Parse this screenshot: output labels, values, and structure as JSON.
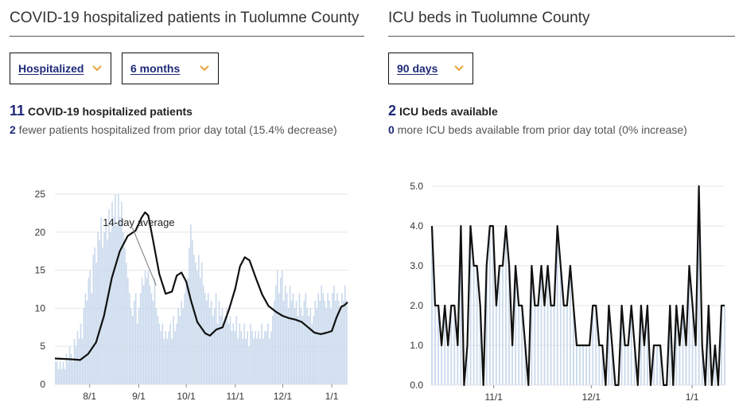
{
  "left": {
    "title": "COVID-19 hospitalized patients in Tuolumne County",
    "select1": "Hospitalized",
    "select2": "6 months",
    "headline_number": "11",
    "headline_text": "COVID-19 hospitalized patients",
    "sub_number": "2",
    "sub_text": " fewer patients hospitalized from prior day total (15.4% decrease)"
  },
  "right": {
    "title": "ICU beds in Tuolumne County",
    "select1": "90 days",
    "headline_number": "2",
    "headline_text": "ICU beds available",
    "sub_number": "0",
    "sub_text": " more ICU beds available from prior day total (0% increase)"
  },
  "colors": {
    "accent": "#1f2a78",
    "bar": "#c9d9ec",
    "line": "#111111",
    "chevron": "#e8a33a"
  },
  "chart_data": [
    {
      "type": "bar",
      "overlay": "line",
      "annotation": "14-day average",
      "ylim": [
        0,
        25
      ],
      "yticks": [
        0,
        5,
        10,
        15,
        20,
        25
      ],
      "xticks": [
        "8/1",
        "9/1",
        "10/1",
        "11/1",
        "12/1",
        "1/1"
      ],
      "x_start": "2021-07-10",
      "x_end": "2022-01-11",
      "bars": [
        3,
        3,
        2,
        3,
        2,
        3,
        2,
        4,
        3,
        5,
        4,
        3,
        6,
        5,
        7,
        6,
        8,
        6,
        10,
        12,
        11,
        14,
        15,
        12,
        17,
        18,
        16,
        20,
        19,
        22,
        18,
        20,
        21,
        19,
        23,
        20,
        24,
        22,
        25,
        21,
        25,
        22,
        24,
        20,
        18,
        16,
        14,
        12,
        10,
        9,
        11,
        12,
        8,
        10,
        12,
        14,
        13,
        15,
        14,
        15,
        13,
        12,
        11,
        14,
        10,
        9,
        8,
        7,
        8,
        6,
        7,
        6,
        7,
        8,
        6,
        9,
        7,
        8,
        10,
        9,
        11,
        10,
        12,
        13,
        14,
        18,
        21,
        19,
        17,
        16,
        15,
        17,
        14,
        16,
        13,
        12,
        11,
        12,
        10,
        11,
        9,
        10,
        12,
        8,
        11,
        9,
        10,
        8,
        9,
        10,
        8,
        9,
        7,
        8,
        7,
        9,
        6,
        8,
        7,
        6,
        8,
        6,
        7,
        5,
        8,
        7,
        6,
        7,
        6,
        7,
        6,
        8,
        6,
        7,
        7,
        8,
        6,
        7,
        9,
        11,
        13,
        15,
        12,
        14,
        15,
        11,
        13,
        12,
        10,
        13,
        11,
        12,
        10,
        11,
        9,
        12,
        10,
        9,
        11,
        12,
        10,
        9,
        10,
        8,
        9,
        11,
        10,
        12,
        11,
        13,
        12,
        11,
        10,
        12,
        11,
        10,
        12,
        13,
        11,
        12,
        11,
        10,
        12,
        11,
        13,
        11
      ],
      "average": [
        [
          "2021-07-10",
          3.4
        ],
        [
          "2021-07-20",
          3.3
        ],
        [
          "2021-07-26",
          3.2
        ],
        [
          "2021-07-31",
          4.0
        ],
        [
          "2021-08-05",
          5.5
        ],
        [
          "2021-08-10",
          9.0
        ],
        [
          "2021-08-15",
          14.0
        ],
        [
          "2021-08-20",
          17.5
        ],
        [
          "2021-08-25",
          19.5
        ],
        [
          "2021-08-30",
          20.2
        ],
        [
          "2021-09-03",
          22.0
        ],
        [
          "2021-09-05",
          22.6
        ],
        [
          "2021-09-07",
          22.2
        ],
        [
          "2021-09-10",
          19.0
        ],
        [
          "2021-09-14",
          14.5
        ],
        [
          "2021-09-18",
          11.9
        ],
        [
          "2021-09-22",
          12.2
        ],
        [
          "2021-09-25",
          14.3
        ],
        [
          "2021-09-28",
          14.7
        ],
        [
          "2021-10-01",
          13.5
        ],
        [
          "2021-10-04",
          11.0
        ],
        [
          "2021-10-08",
          8.2
        ],
        [
          "2021-10-13",
          6.7
        ],
        [
          "2021-10-16",
          6.4
        ],
        [
          "2021-10-20",
          7.2
        ],
        [
          "2021-10-24",
          7.5
        ],
        [
          "2021-10-28",
          9.8
        ],
        [
          "2021-11-01",
          12.6
        ],
        [
          "2021-11-04",
          15.5
        ],
        [
          "2021-11-07",
          16.7
        ],
        [
          "2021-11-10",
          16.3
        ],
        [
          "2021-11-14",
          14.0
        ],
        [
          "2021-11-18",
          11.8
        ],
        [
          "2021-11-22",
          10.3
        ],
        [
          "2021-11-27",
          9.5
        ],
        [
          "2021-12-01",
          9.0
        ],
        [
          "2021-12-05",
          8.7
        ],
        [
          "2021-12-09",
          8.5
        ],
        [
          "2021-12-13",
          8.2
        ],
        [
          "2021-12-17",
          7.5
        ],
        [
          "2021-12-21",
          6.8
        ],
        [
          "2021-12-25",
          6.6
        ],
        [
          "2021-12-29",
          6.8
        ],
        [
          "2022-01-01",
          7.0
        ],
        [
          "2022-01-04",
          8.8
        ],
        [
          "2022-01-07",
          10.2
        ],
        [
          "2022-01-09",
          10.4
        ],
        [
          "2022-01-11",
          10.8
        ]
      ]
    },
    {
      "type": "line",
      "overlay": "bar",
      "ylim": [
        0,
        5
      ],
      "yticks": [
        "0.0",
        "1.0",
        "2.0",
        "3.0",
        "4.0",
        "5.0"
      ],
      "xticks": [
        "11/1",
        "12/1",
        "1/1"
      ],
      "x_start": "2021-10-13",
      "x_end": "2022-01-11",
      "values": [
        4,
        2,
        2,
        1,
        2,
        1,
        2,
        2,
        1,
        4,
        0,
        1,
        4,
        3,
        3,
        2,
        0,
        3,
        4,
        4,
        2,
        3,
        3,
        4,
        3,
        1,
        3,
        2,
        2,
        1,
        0,
        3,
        2,
        2,
        3,
        2,
        3,
        2,
        2,
        4,
        3,
        2,
        2,
        3,
        2,
        1,
        1,
        1,
        1,
        1,
        2,
        2,
        1,
        1,
        0,
        2,
        1,
        0,
        0,
        2,
        1,
        1,
        2,
        1,
        0,
        2,
        1,
        2,
        0,
        1,
        1,
        1,
        0,
        0,
        2,
        0,
        2,
        1,
        2,
        1,
        3,
        2,
        1,
        5,
        1,
        0,
        2,
        0,
        1,
        0,
        2,
        2
      ]
    }
  ]
}
